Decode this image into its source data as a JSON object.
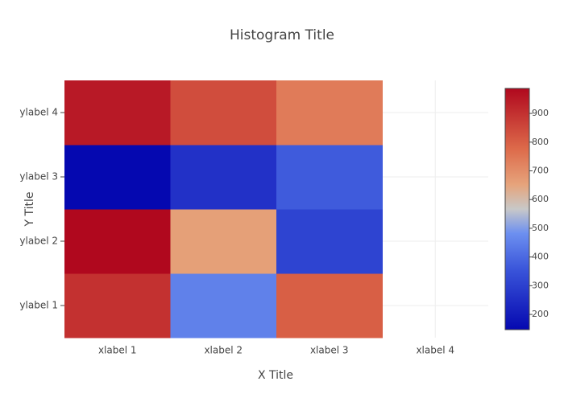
{
  "chart_data": {
    "type": "heatmap",
    "title": "Histogram Title",
    "x_label": "X Title",
    "y_label": "Y Title",
    "x": [
      "xlabel 1",
      "xlabel 2",
      "xlabel 3",
      "xlabel 4"
    ],
    "y": [
      "ylabel 1",
      "ylabel 2",
      "ylabel 3",
      "ylabel 4"
    ],
    "z": [
      [
        900,
        450,
        800,
        null
      ],
      [
        987,
        660,
        310,
        null
      ],
      [
        147,
        260,
        370,
        null
      ],
      [
        950,
        840,
        740,
        null
      ]
    ],
    "zlim": [
      147,
      987
    ],
    "colorscale": [
      [
        0,
        "#0508b0"
      ],
      [
        0.25,
        "#3a55da"
      ],
      [
        0.4,
        "#6d90f0"
      ],
      [
        0.5,
        "#c8c8c8"
      ],
      [
        0.6,
        "#e6a47c"
      ],
      [
        0.75,
        "#dd6a4a"
      ],
      [
        1,
        "#b0081e"
      ]
    ],
    "colorbar_ticks": [
      200,
      300,
      400,
      500,
      600,
      700,
      800,
      900
    ],
    "grid": true
  }
}
